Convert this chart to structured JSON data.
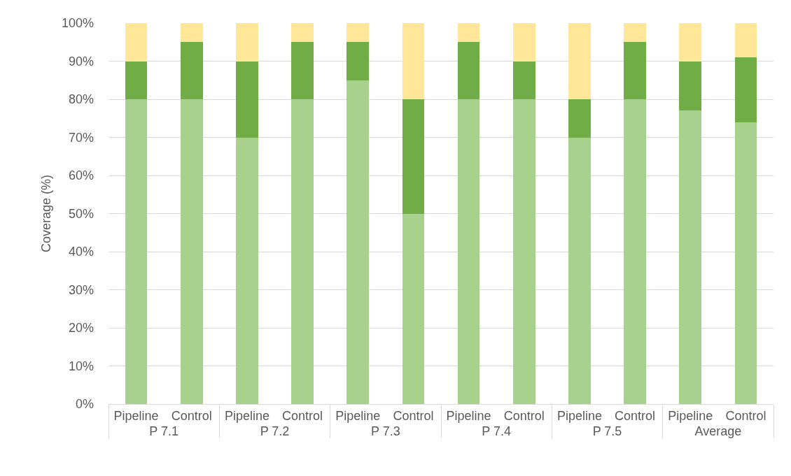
{
  "chart_data": {
    "type": "bar",
    "stacked": true,
    "ylabel": "Coverage (%)",
    "categories": [
      [
        "P 7.1",
        "Pipeline"
      ],
      [
        null,
        "Control"
      ],
      [
        "P 7.2",
        "Pipeline"
      ],
      [
        null,
        "Control"
      ],
      [
        "P 7.3",
        "Pipeline"
      ],
      [
        null,
        "Control"
      ],
      [
        "P 7.4",
        "Pipeline"
      ],
      [
        null,
        "Control"
      ],
      [
        "P 7.5",
        "Pipeline"
      ],
      [
        null,
        "Control"
      ],
      [
        "Average",
        "Pipeline"
      ],
      [
        null,
        "Control"
      ]
    ],
    "series": [
      {
        "color": "#a9d18e",
        "values": [
          80,
          80,
          70,
          80,
          85,
          50,
          80,
          80,
          70,
          80,
          77,
          74
        ]
      },
      {
        "color": "#70ad47",
        "values": [
          10,
          15,
          20,
          15,
          10,
          30,
          15,
          10,
          10,
          15,
          13,
          17
        ]
      },
      {
        "color": "#ffe699",
        "values": [
          10,
          5,
          10,
          5,
          5,
          20,
          5,
          10,
          20,
          5,
          10,
          9
        ]
      }
    ],
    "ylim": [
      0,
      100
    ],
    "yticks": [
      {
        "value": 0,
        "label": "0%"
      },
      {
        "value": 10,
        "label": "10%"
      },
      {
        "value": 20,
        "label": "20%"
      },
      {
        "value": 30,
        "label": "30%"
      },
      {
        "value": 40,
        "label": "40%"
      },
      {
        "value": 50,
        "label": "50%"
      },
      {
        "value": 60,
        "label": "60%"
      },
      {
        "value": 70,
        "label": "70%"
      },
      {
        "value": 80,
        "label": "80%"
      },
      {
        "value": 90,
        "label": "90%"
      },
      {
        "value": 100,
        "label": "100%"
      }
    ],
    "grid": "y"
  }
}
